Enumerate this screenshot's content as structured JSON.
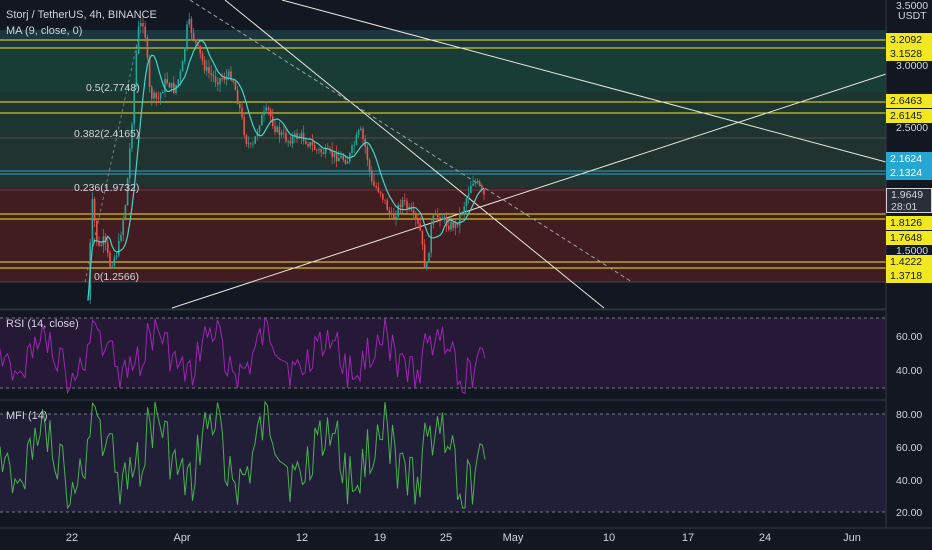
{
  "header": {
    "symbol_line": "Storj / TetherUS, 4h, BINANCE",
    "ma_legend": "MA (9, close, 0)"
  },
  "currency_label": "USDT",
  "fib_labels": [
    {
      "text": "0.5(2.7748)"
    },
    {
      "text": "0.382(2.4165)"
    },
    {
      "text": "0.236(1.9732)"
    },
    {
      "text": "0(1.2566)"
    }
  ],
  "price_axis": {
    "ticks": [
      "3.5000",
      "3.0000",
      "2.5000",
      "1.5000"
    ],
    "tags": [
      {
        "text": "3.2092",
        "style": "yellow"
      },
      {
        "text": "3.1528",
        "style": "yellow"
      },
      {
        "text": "2.6463",
        "style": "yellow"
      },
      {
        "text": "2.6145",
        "style": "yellow"
      },
      {
        "text": "2.1624",
        "style": "cyan"
      },
      {
        "text": "2.1324",
        "style": "cyan"
      },
      {
        "text": "1.8126",
        "style": "yellow"
      },
      {
        "text": "1.7648",
        "style": "yellow"
      },
      {
        "text": "1.4222",
        "style": "yellow"
      },
      {
        "text": "1.3718",
        "style": "yellow"
      }
    ],
    "current": {
      "price": "1.9649",
      "countdown": "28:01"
    }
  },
  "rsi": {
    "legend": "RSI (14, close)",
    "ticks": [
      "60.00",
      "40.00"
    ],
    "color": "#9c27b0"
  },
  "mfi": {
    "legend": "MFI (14)",
    "ticks": [
      "80.00",
      "60.00",
      "40.00",
      "20.00"
    ],
    "color": "#4caf50"
  },
  "date_axis": [
    "22",
    "Apr",
    "12",
    "19",
    "25",
    "May",
    "10",
    "17",
    "24",
    "Jun"
  ],
  "colors": {
    "background": "#131722",
    "up": "#26a69a",
    "down": "#ef5350",
    "ma": "#4dd0c8",
    "fib_green": "#1b4d3e",
    "fib_red": "#4a1e22",
    "level_yellow": "#f2e81f",
    "level_cyan": "#26a6d1"
  }
}
